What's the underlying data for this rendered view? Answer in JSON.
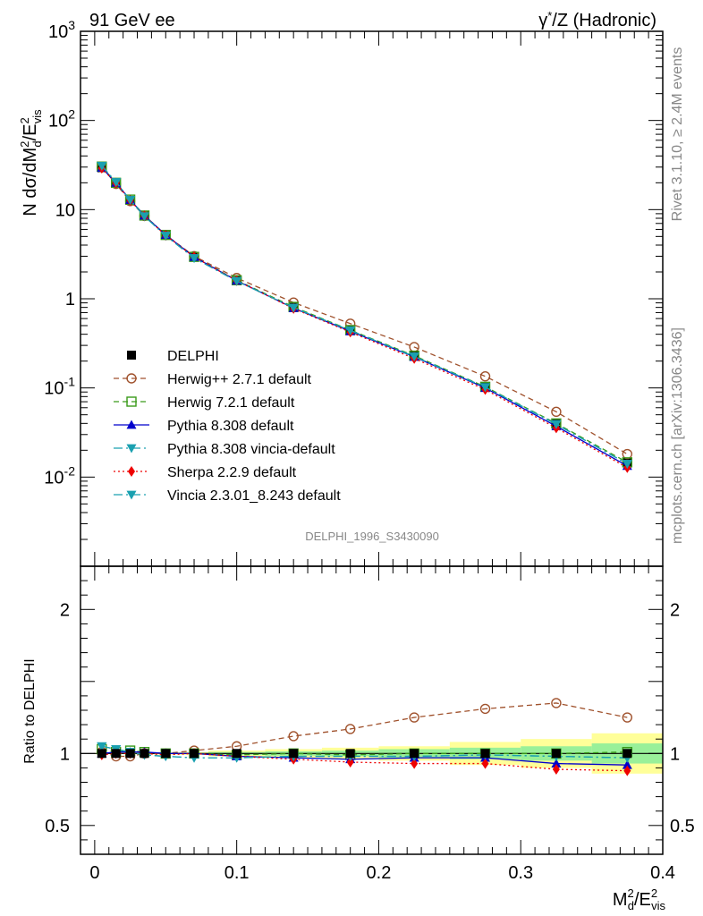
{
  "header": {
    "left": "91 GeV ee",
    "right_prefix": "γ",
    "right_sup": "*",
    "right_suffix": "/Z (Hadronic)"
  },
  "side": {
    "rivet": "Rivet 3.1.10, ≥ 2.4M events",
    "mcplots": "mcplots.cern.ch [arXiv:1306.3436]"
  },
  "watermark": "DELPHI_1996_S3430090",
  "ratio_ylabel": "Ratio to DELPHI",
  "main_ylabel": {
    "a": "N dσ/dM",
    "sup1": "2",
    "sub1": "d",
    "b": "/E",
    "sup2": "2",
    "sub2": "vis"
  },
  "xlabel": {
    "a": "M",
    "sup1": "2",
    "sub1": "d",
    "b": "/E",
    "sup2": "2",
    "sub2": "vis"
  },
  "colors": {
    "data": "#000000",
    "herwigpp": "#a0522d",
    "herwig7": "#3a9a1a",
    "pythia": "#0000cc",
    "pythia_vincia": "#1aa0b0",
    "sherpa": "#ee0000",
    "vincia": "#1aa0b0",
    "band_outer": "#ffff99",
    "band_inner": "#99f099"
  },
  "chart_data": {
    "type": "line",
    "x": [
      0.005,
      0.015,
      0.025,
      0.035,
      0.05,
      0.07,
      0.1,
      0.14,
      0.18,
      0.225,
      0.275,
      0.325,
      0.375
    ],
    "x_bins": [
      [
        0.0,
        0.01
      ],
      [
        0.01,
        0.02
      ],
      [
        0.02,
        0.03
      ],
      [
        0.03,
        0.04
      ],
      [
        0.04,
        0.06
      ],
      [
        0.06,
        0.08
      ],
      [
        0.08,
        0.12
      ],
      [
        0.12,
        0.16
      ],
      [
        0.16,
        0.2
      ],
      [
        0.2,
        0.25
      ],
      [
        0.25,
        0.3
      ],
      [
        0.3,
        0.35
      ],
      [
        0.35,
        0.4
      ]
    ],
    "xlim": [
      -0.01,
      0.4
    ],
    "main_ylim": [
      0.001,
      1000
    ],
    "main_yscale": "log",
    "main_ytick_labels": [
      "10^-2",
      "10^-1",
      "1",
      "10",
      "10^2",
      "10^3"
    ],
    "ratio_ylim": [
      0.3,
      2.3
    ],
    "ratio_ytick_labels": [
      "0.5",
      "1",
      "2"
    ],
    "xtick_labels": [
      "0",
      "0.1",
      "0.2",
      "0.3",
      "0.4"
    ],
    "series": [
      {
        "name": "DELPHI",
        "key": "data",
        "values": [
          29.5,
          19.8,
          12.7,
          8.5,
          5.2,
          2.95,
          1.63,
          0.81,
          0.45,
          0.23,
          0.103,
          0.04,
          0.0145
        ]
      },
      {
        "name": "Herwig++ 2.7.1 default",
        "key": "herwigpp",
        "ratio": [
          1.01,
          0.98,
          0.98,
          1.0,
          1.0,
          1.02,
          1.05,
          1.12,
          1.17,
          1.25,
          1.31,
          1.35,
          1.25
        ]
      },
      {
        "name": "Herwig 7.2.1 default",
        "key": "herwig7",
        "ratio": [
          1.03,
          1.01,
          1.02,
          1.01,
          1.0,
          1.0,
          0.99,
          1.0,
          0.99,
          1.0,
          1.0,
          1.0,
          1.01
        ]
      },
      {
        "name": "Pythia 8.308 default",
        "key": "pythia",
        "ratio": [
          1.0,
          1.01,
          1.01,
          1.01,
          1.0,
          1.0,
          0.98,
          0.97,
          0.96,
          0.97,
          0.97,
          0.93,
          0.92
        ]
      },
      {
        "name": "Pythia 8.308 vincia-default",
        "key": "pythia_vincia",
        "ratio": [
          1.05,
          1.03,
          1.01,
          0.99,
          0.98,
          0.97,
          0.97,
          0.98,
          0.98,
          0.98,
          0.99,
          0.98,
          0.97
        ]
      },
      {
        "name": "Sherpa 2.2.9 default",
        "key": "sherpa",
        "ratio": [
          0.99,
          1.0,
          1.0,
          1.0,
          0.99,
          1.0,
          0.98,
          0.96,
          0.94,
          0.93,
          0.93,
          0.89,
          0.88
        ]
      },
      {
        "name": "Vincia 2.3.01_8.243 default",
        "key": "vincia",
        "ratio": [
          1.05,
          1.03,
          1.01,
          0.99,
          0.98,
          0.97,
          0.97,
          0.98,
          0.98,
          0.98,
          0.99,
          0.98,
          0.97
        ]
      }
    ],
    "data_uncertainty": {
      "outer": [
        0.005,
        0.005,
        0.005,
        0.005,
        0.008,
        0.01,
        0.02,
        0.03,
        0.04,
        0.05,
        0.08,
        0.1,
        0.14
      ],
      "inner": [
        0.003,
        0.003,
        0.003,
        0.003,
        0.004,
        0.005,
        0.01,
        0.015,
        0.02,
        0.03,
        0.04,
        0.05,
        0.07
      ]
    }
  }
}
